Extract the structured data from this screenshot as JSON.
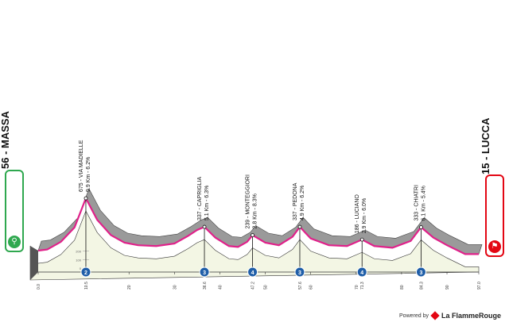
{
  "start": {
    "label": "56 - MASSA",
    "icon": "cyclist-icon"
  },
  "finish": {
    "label": "15 - LUCCA",
    "icon": "finish-flag-icon"
  },
  "footer": {
    "powered_by": "Powered by",
    "brand": "La FlammeRouge"
  },
  "colors": {
    "profile_fill": "#f3f6e4",
    "mountain_grey": "#9a9a9a",
    "road_magenta": "#e0218a",
    "marker_blue": "#1f5ea8"
  },
  "chart_data": {
    "type": "area",
    "title": "",
    "xlabel": "",
    "ylabel": "",
    "xlim": [
      0,
      97
    ],
    "elevation_ticks": [
      "200",
      "100",
      "0"
    ],
    "distance_ticks": [
      {
        "x": 0,
        "label": "0.0"
      },
      {
        "x": 10.5,
        "label": "10.5"
      },
      {
        "x": 20,
        "label": "20"
      },
      {
        "x": 30,
        "label": "30"
      },
      {
        "x": 36.6,
        "label": "36.6"
      },
      {
        "x": 40,
        "label": "40"
      },
      {
        "x": 47.2,
        "label": "47.2"
      },
      {
        "x": 50,
        "label": "50"
      },
      {
        "x": 57.6,
        "label": "57.6"
      },
      {
        "x": 60,
        "label": "60"
      },
      {
        "x": 70,
        "label": "70"
      },
      {
        "x": 71.3,
        "label": "71.3"
      },
      {
        "x": 80,
        "label": "80"
      },
      {
        "x": 84.3,
        "label": "84.3"
      },
      {
        "x": 90,
        "label": "90"
      },
      {
        "x": 97.0,
        "label": "97.0"
      }
    ],
    "profile": {
      "x": [
        0,
        2,
        5,
        8,
        10.5,
        13,
        16,
        19,
        22,
        26,
        30,
        33,
        35,
        36.6,
        39,
        42,
        44,
        46,
        47.2,
        50,
        53,
        56,
        57.6,
        60,
        64,
        68,
        71.3,
        74,
        78,
        82,
        84.3,
        87,
        90,
        94,
        97
      ],
      "y": [
        56,
        70,
        160,
        330,
        675,
        420,
        240,
        150,
        120,
        110,
        140,
        230,
        300,
        337,
        210,
        110,
        100,
        160,
        239,
        150,
        120,
        220,
        337,
        200,
        120,
        110,
        186,
        110,
        90,
        170,
        333,
        210,
        120,
        15,
        15
      ]
    },
    "climbs": [
      {
        "x": 10.5,
        "elevation": "675",
        "name": "VIA MADIELLE",
        "detail": "9.9 Km - 6.2%",
        "category": "2"
      },
      {
        "x": 36.6,
        "elevation": "337",
        "name": "CAPRIGLIA",
        "detail": "5.1 Km - 6.3%",
        "category": "3"
      },
      {
        "x": 47.2,
        "elevation": "239",
        "name": "MONTEGGIORI",
        "detail": "2.8 Km - 8.3%",
        "category": "4"
      },
      {
        "x": 57.6,
        "elevation": "337",
        "name": "PEDONA",
        "detail": "4.9 Km - 6.2%",
        "category": "3"
      },
      {
        "x": 71.3,
        "elevation": "186",
        "name": "LUCIANO",
        "detail": "2.9 Km - 6.0%",
        "category": "4"
      },
      {
        "x": 84.3,
        "elevation": "333",
        "name": "CHIATRI",
        "detail": "6.1 Km - 5.4%",
        "category": "3"
      }
    ]
  }
}
